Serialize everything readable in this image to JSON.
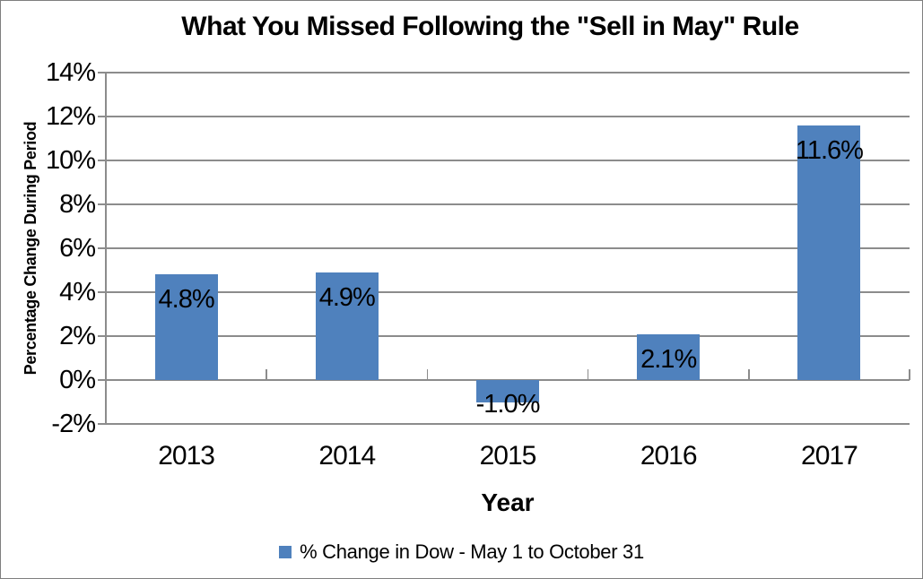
{
  "chart_data": {
    "type": "bar",
    "title": "What You Missed Following the \"Sell in May\" Rule",
    "xlabel": "Year",
    "ylabel": "Percentage Change During Period",
    "categories": [
      "2013",
      "2014",
      "2015",
      "2016",
      "2017"
    ],
    "series": [
      {
        "name": "% Change in Dow - May 1 to October 31",
        "values": [
          4.8,
          4.9,
          -1.0,
          2.1,
          11.6
        ],
        "data_labels": [
          "4.8%",
          "4.9%",
          "-1.0%",
          "2.1%",
          "11.6%"
        ]
      }
    ],
    "ylim": [
      -2,
      14
    ],
    "ytick_step": 2,
    "ytick_labels": [
      "14%",
      "12%",
      "10%",
      "8%",
      "6%",
      "4%",
      "2%",
      "0%",
      "-2%"
    ],
    "grid": true,
    "legend_position": "bottom",
    "colors": {
      "bar": "#4F81BD",
      "grid": "#8C8C8C",
      "axis": "#8C8C8C",
      "text": "#000000",
      "background": "#FFFFFF",
      "canvas_border": "#7F7F7F"
    }
  }
}
